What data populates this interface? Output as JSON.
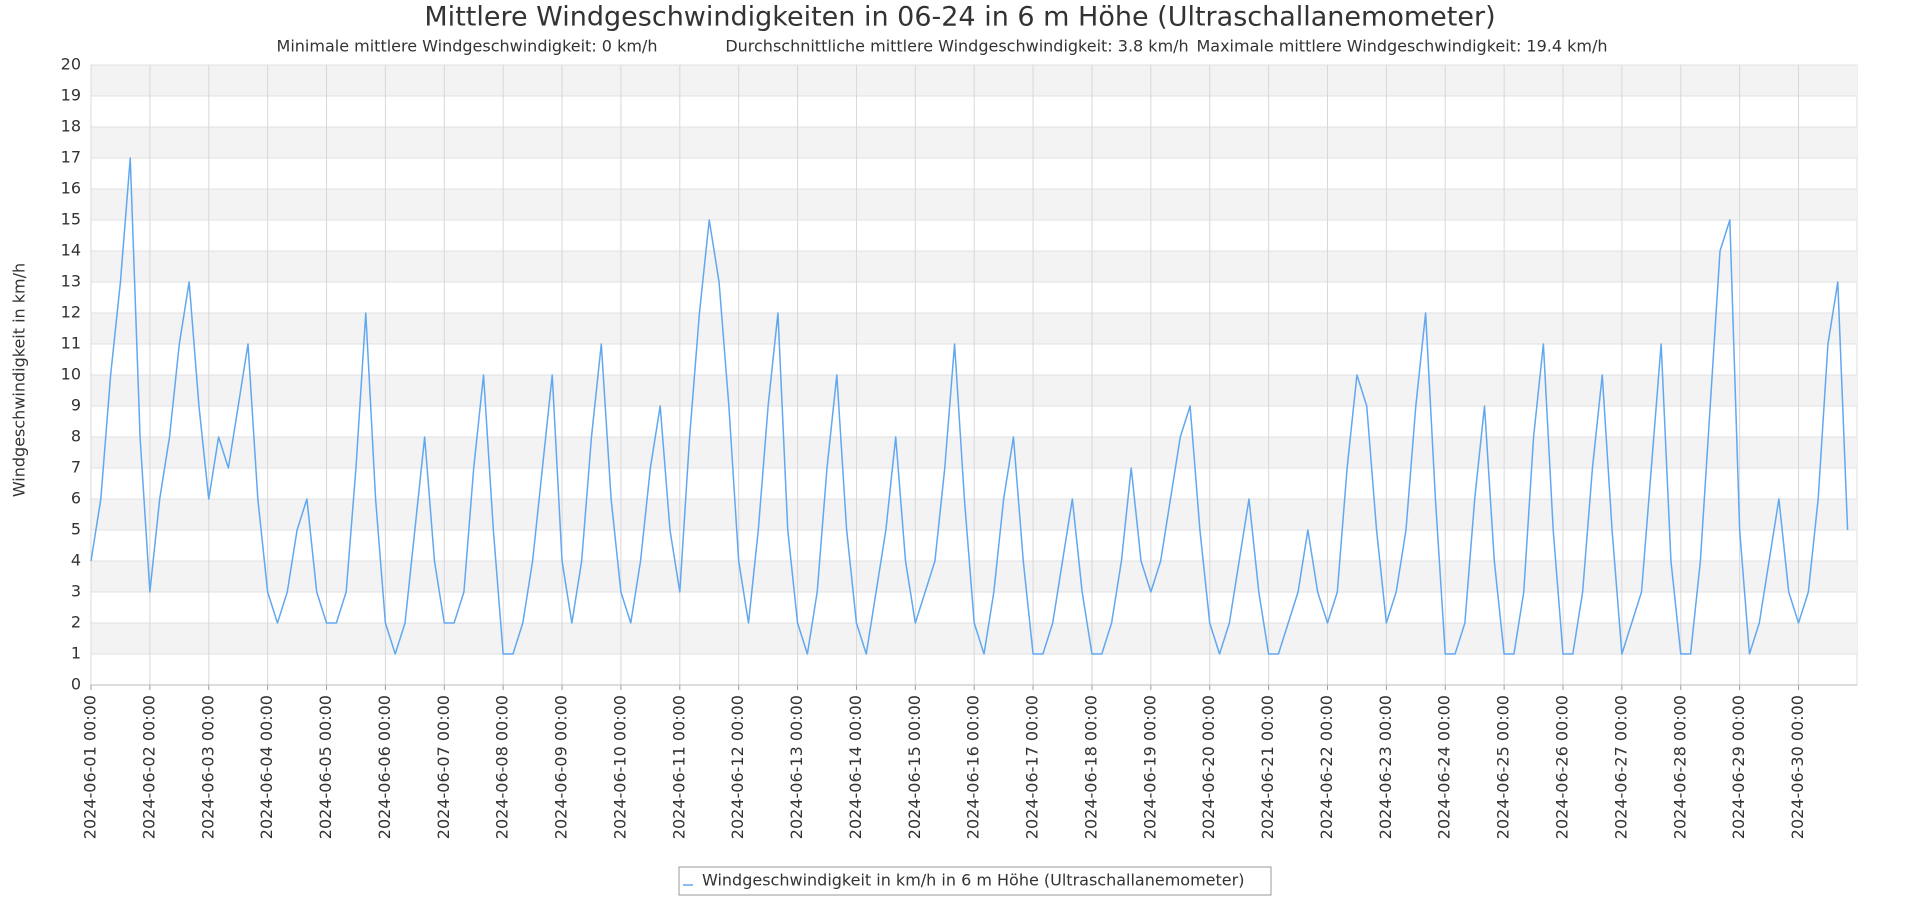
{
  "chart_data": {
    "type": "line",
    "title": "Mittlere Windgeschwindigkeiten in 06-24 in 6 m Höhe (Ultraschallanemometer)",
    "subtitle": [
      "Minimale mittlere Windgeschwindigkeit: 0 km/h",
      "Durchschnittliche mittlere Windgeschwindigkeit: 3.8 km/h",
      "Maximale mittlere Windgeschwindigkeit: 19.4 km/h"
    ],
    "y_label": "Windgeschwindigkeit in km/h",
    "xlim": [
      "2024-06-01 00:00",
      "2024-06-30 23:50"
    ],
    "xticks": [
      "2024-06-01 00:00",
      "2024-06-02 00:00",
      "2024-06-03 00:00",
      "2024-06-04 00:00",
      "2024-06-05 00:00",
      "2024-06-06 00:00",
      "2024-06-07 00:00",
      "2024-06-08 00:00",
      "2024-06-09 00:00",
      "2024-06-10 00:00",
      "2024-06-11 00:00",
      "2024-06-12 00:00",
      "2024-06-13 00:00",
      "2024-06-14 00:00",
      "2024-06-15 00:00",
      "2024-06-16 00:00",
      "2024-06-17 00:00",
      "2024-06-18 00:00",
      "2024-06-19 00:00",
      "2024-06-20 00:00",
      "2024-06-21 00:00",
      "2024-06-22 00:00",
      "2024-06-23 00:00",
      "2024-06-24 00:00",
      "2024-06-25 00:00",
      "2024-06-26 00:00",
      "2024-06-27 00:00",
      "2024-06-28 00:00",
      "2024-06-29 00:00",
      "2024-06-30 00:00"
    ],
    "ylim": [
      0,
      20
    ],
    "yticks": [
      0,
      1,
      2,
      3,
      4,
      5,
      6,
      7,
      8,
      9,
      10,
      11,
      12,
      13,
      14,
      15,
      16,
      17,
      18,
      19,
      20
    ],
    "grid": true,
    "legend": "bottom",
    "x": [
      "2024-06-01 00:00",
      "2024-06-01 04:00",
      "2024-06-01 08:00",
      "2024-06-01 12:00",
      "2024-06-01 16:00",
      "2024-06-01 20:00",
      "2024-06-02 00:00",
      "2024-06-02 04:00",
      "2024-06-02 08:00",
      "2024-06-02 12:00",
      "2024-06-02 16:00",
      "2024-06-02 20:00",
      "2024-06-03 00:00",
      "2024-06-03 04:00",
      "2024-06-03 08:00",
      "2024-06-03 12:00",
      "2024-06-03 16:00",
      "2024-06-03 20:00",
      "2024-06-04 00:00",
      "2024-06-04 04:00",
      "2024-06-04 08:00",
      "2024-06-04 12:00",
      "2024-06-04 16:00",
      "2024-06-04 20:00",
      "2024-06-05 00:00",
      "2024-06-05 04:00",
      "2024-06-05 08:00",
      "2024-06-05 12:00",
      "2024-06-05 16:00",
      "2024-06-05 20:00",
      "2024-06-06 00:00",
      "2024-06-06 04:00",
      "2024-06-06 08:00",
      "2024-06-06 12:00",
      "2024-06-06 16:00",
      "2024-06-06 20:00",
      "2024-06-07 00:00",
      "2024-06-07 04:00",
      "2024-06-07 08:00",
      "2024-06-07 12:00",
      "2024-06-07 16:00",
      "2024-06-07 20:00",
      "2024-06-08 00:00",
      "2024-06-08 04:00",
      "2024-06-08 08:00",
      "2024-06-08 12:00",
      "2024-06-08 16:00",
      "2024-06-08 20:00",
      "2024-06-09 00:00",
      "2024-06-09 04:00",
      "2024-06-09 08:00",
      "2024-06-09 12:00",
      "2024-06-09 16:00",
      "2024-06-09 20:00",
      "2024-06-10 00:00",
      "2024-06-10 04:00",
      "2024-06-10 08:00",
      "2024-06-10 12:00",
      "2024-06-10 16:00",
      "2024-06-10 20:00",
      "2024-06-11 00:00",
      "2024-06-11 04:00",
      "2024-06-11 08:00",
      "2024-06-11 12:00",
      "2024-06-11 16:00",
      "2024-06-11 20:00",
      "2024-06-12 00:00",
      "2024-06-12 04:00",
      "2024-06-12 08:00",
      "2024-06-12 12:00",
      "2024-06-12 16:00",
      "2024-06-12 20:00",
      "2024-06-13 00:00",
      "2024-06-13 04:00",
      "2024-06-13 08:00",
      "2024-06-13 12:00",
      "2024-06-13 16:00",
      "2024-06-13 20:00",
      "2024-06-14 00:00",
      "2024-06-14 04:00",
      "2024-06-14 08:00",
      "2024-06-14 12:00",
      "2024-06-14 16:00",
      "2024-06-14 20:00",
      "2024-06-15 00:00",
      "2024-06-15 04:00",
      "2024-06-15 08:00",
      "2024-06-15 12:00",
      "2024-06-15 16:00",
      "2024-06-15 20:00",
      "2024-06-16 00:00",
      "2024-06-16 04:00",
      "2024-06-16 08:00",
      "2024-06-16 12:00",
      "2024-06-16 16:00",
      "2024-06-16 20:00",
      "2024-06-17 00:00",
      "2024-06-17 04:00",
      "2024-06-17 08:00",
      "2024-06-17 12:00",
      "2024-06-17 16:00",
      "2024-06-17 20:00",
      "2024-06-18 00:00",
      "2024-06-18 04:00",
      "2024-06-18 08:00",
      "2024-06-18 12:00",
      "2024-06-18 16:00",
      "2024-06-18 20:00",
      "2024-06-19 00:00",
      "2024-06-19 04:00",
      "2024-06-19 08:00",
      "2024-06-19 12:00",
      "2024-06-19 16:00",
      "2024-06-19 20:00",
      "2024-06-20 00:00",
      "2024-06-20 04:00",
      "2024-06-20 08:00",
      "2024-06-20 12:00",
      "2024-06-20 16:00",
      "2024-06-20 20:00",
      "2024-06-21 00:00",
      "2024-06-21 04:00",
      "2024-06-21 08:00",
      "2024-06-21 12:00",
      "2024-06-21 16:00",
      "2024-06-21 20:00",
      "2024-06-22 00:00",
      "2024-06-22 04:00",
      "2024-06-22 08:00",
      "2024-06-22 12:00",
      "2024-06-22 16:00",
      "2024-06-22 20:00",
      "2024-06-23 00:00",
      "2024-06-23 04:00",
      "2024-06-23 08:00",
      "2024-06-23 12:00",
      "2024-06-23 16:00",
      "2024-06-23 20:00",
      "2024-06-24 00:00",
      "2024-06-24 04:00",
      "2024-06-24 08:00",
      "2024-06-24 12:00",
      "2024-06-24 16:00",
      "2024-06-24 20:00",
      "2024-06-25 00:00",
      "2024-06-25 04:00",
      "2024-06-25 08:00",
      "2024-06-25 12:00",
      "2024-06-25 16:00",
      "2024-06-25 20:00",
      "2024-06-26 00:00",
      "2024-06-26 04:00",
      "2024-06-26 08:00",
      "2024-06-26 12:00",
      "2024-06-26 16:00",
      "2024-06-26 20:00",
      "2024-06-27 00:00",
      "2024-06-27 04:00",
      "2024-06-27 08:00",
      "2024-06-27 12:00",
      "2024-06-27 16:00",
      "2024-06-27 20:00",
      "2024-06-28 00:00",
      "2024-06-28 04:00",
      "2024-06-28 08:00",
      "2024-06-28 12:00",
      "2024-06-28 16:00",
      "2024-06-28 20:00",
      "2024-06-29 00:00",
      "2024-06-29 04:00",
      "2024-06-29 08:00",
      "2024-06-29 12:00",
      "2024-06-29 16:00",
      "2024-06-29 20:00",
      "2024-06-30 00:00",
      "2024-06-30 04:00",
      "2024-06-30 08:00",
      "2024-06-30 12:00",
      "2024-06-30 16:00",
      "2024-06-30 20:00"
    ],
    "series": [
      {
        "name": "Windgeschwindigkeit in km/h in 6 m Höhe (Ultraschallanemometer)",
        "color": "#60a8f0",
        "values": [
          4,
          6,
          10,
          13,
          17,
          8,
          3,
          6,
          8,
          11,
          13,
          9,
          6,
          8,
          7,
          9,
          11,
          6,
          3,
          2,
          3,
          5,
          6,
          3,
          2,
          2,
          3,
          7,
          12,
          6,
          2,
          1,
          2,
          5,
          8,
          4,
          2,
          2,
          3,
          7,
          10,
          5,
          1,
          1,
          2,
          4,
          7,
          10,
          4,
          2,
          4,
          8,
          11,
          6,
          3,
          2,
          4,
          7,
          9,
          5,
          3,
          8,
          12,
          15,
          13,
          9,
          4,
          2,
          5,
          9,
          12,
          5,
          2,
          1,
          3,
          7,
          10,
          5,
          2,
          1,
          3,
          5,
          8,
          4,
          2,
          3,
          4,
          7,
          11,
          6,
          2,
          1,
          3,
          6,
          8,
          4,
          1,
          1,
          2,
          4,
          6,
          3,
          1,
          1,
          2,
          4,
          7,
          4,
          3,
          4,
          6,
          8,
          9,
          5,
          2,
          1,
          2,
          4,
          6,
          3,
          1,
          1,
          2,
          3,
          5,
          3,
          2,
          3,
          7,
          10,
          9,
          5,
          2,
          3,
          5,
          9,
          12,
          6,
          1,
          1,
          2,
          6,
          9,
          4,
          1,
          1,
          3,
          8,
          11,
          5,
          1,
          1,
          3,
          7,
          10,
          5,
          1,
          2,
          3,
          7,
          11,
          4,
          1,
          1,
          4,
          9,
          14,
          15,
          5,
          1,
          2,
          4,
          6,
          3,
          2,
          3,
          6,
          11,
          13,
          5
        ]
      }
    ]
  }
}
